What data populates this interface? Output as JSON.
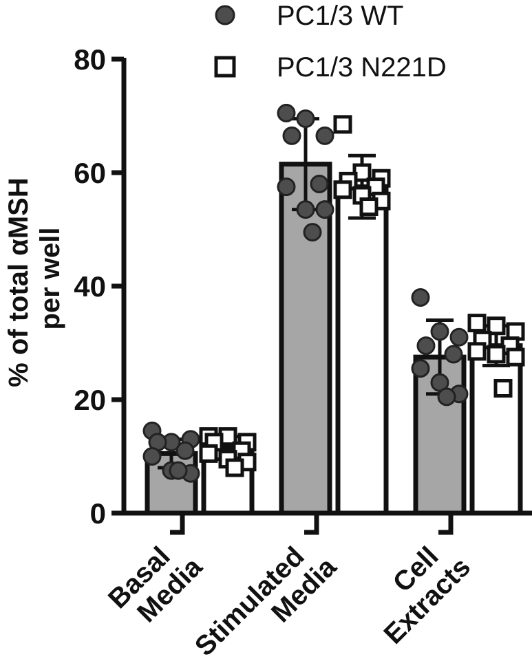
{
  "chart_data": {
    "type": "bar",
    "ylabel_lines": [
      "% of total αMSH",
      "per well"
    ],
    "ylim": [
      0,
      80
    ],
    "yticks": [
      0,
      20,
      40,
      60,
      80
    ],
    "categories": [
      {
        "lines": [
          "Basal",
          "Media"
        ]
      },
      {
        "lines": [
          "Stimulated",
          "Media"
        ]
      },
      {
        "lines": [
          "Cell",
          "Extracts"
        ]
      }
    ],
    "series": [
      {
        "name": "PC1/3 WT",
        "marker": "filled-circle",
        "bar_color": "#a6a6a6",
        "marker_color": "#4d4d4d",
        "means": [
          10.5,
          61.5,
          27.5
        ],
        "sd": [
          2.5,
          8.0,
          6.5
        ],
        "points": [
          [
            14.5,
            12.5,
            13,
            12.5,
            11,
            10,
            7.5,
            7,
            7.5
          ],
          [
            70.5,
            69.5,
            66.5,
            66.5,
            58,
            57.5,
            53.5,
            53.5,
            49.5
          ],
          [
            38,
            32,
            31,
            29.5,
            28,
            25.5,
            23,
            21,
            20.5
          ]
        ]
      },
      {
        "name": "PC1/3 N221D",
        "marker": "open-square",
        "bar_color": "#ffffff",
        "marker_color": "#111111",
        "means": [
          11.5,
          57.5,
          29.5
        ],
        "sd": [
          2.0,
          5.5,
          3.5
        ],
        "points": [
          [
            13.5,
            13.5,
            12.5,
            12.5,
            11,
            10.5,
            9.5,
            9,
            8
          ],
          [
            68.5,
            60,
            59,
            58.5,
            57.5,
            57,
            56,
            55,
            54
          ],
          [
            33.5,
            33,
            32,
            30.5,
            29.5,
            28.5,
            28,
            27.5,
            22
          ]
        ]
      }
    ],
    "legend": {
      "position": "top-right"
    }
  }
}
